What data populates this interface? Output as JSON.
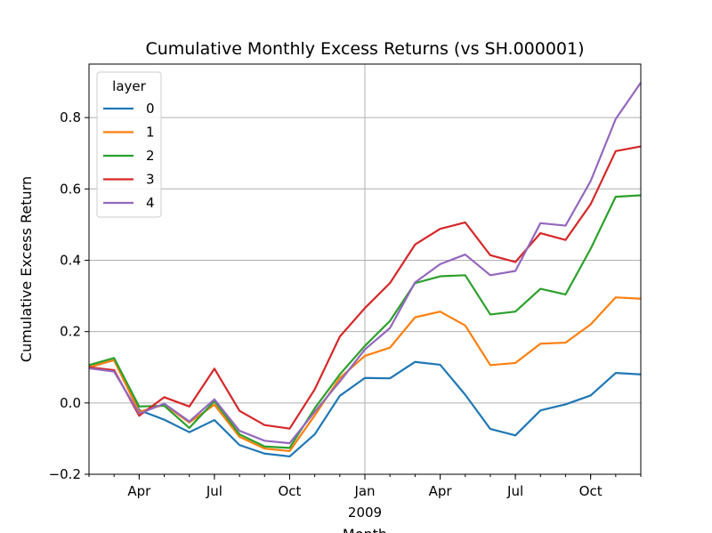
{
  "chart_data": {
    "type": "line",
    "title": "Cumulative Monthly Excess Returns (vs SH.000001)",
    "xlabel": "Month",
    "ylabel": "Cumulative Excess Return",
    "ylim": [
      -0.2,
      0.95
    ],
    "yticks": [
      -0.2,
      0.0,
      0.2,
      0.4,
      0.6,
      0.8
    ],
    "ytick_labels": [
      "−0.2",
      "0.0",
      "0.2",
      "0.4",
      "0.6",
      "0.8"
    ],
    "x": [
      "2008-02",
      "2008-03",
      "2008-04",
      "2008-05",
      "2008-06",
      "2008-07",
      "2008-08",
      "2008-09",
      "2008-10",
      "2008-11",
      "2008-12",
      "2009-01",
      "2009-02",
      "2009-03",
      "2009-04",
      "2009-05",
      "2009-06",
      "2009-07",
      "2009-08",
      "2009-09",
      "2009-10",
      "2009-11",
      "2009-12"
    ],
    "xtick_labels": [
      {
        "month": "2008-04",
        "label": "Apr"
      },
      {
        "month": "2008-07",
        "label": "Jul"
      },
      {
        "month": "2008-10",
        "label": "Oct"
      },
      {
        "month": "2009-01",
        "label": "Jan",
        "sublabel": "2009"
      },
      {
        "month": "2009-04",
        "label": "Apr"
      },
      {
        "month": "2009-07",
        "label": "Jul"
      },
      {
        "month": "2009-10",
        "label": "Oct"
      }
    ],
    "grid": true,
    "legend": {
      "title": "layer",
      "position": "top-left"
    },
    "series": [
      {
        "name": "0",
        "color": "#1f77b4",
        "values": [
          0.1,
          0.12,
          -0.02,
          -0.047,
          -0.082,
          -0.048,
          -0.118,
          -0.142,
          -0.15,
          -0.088,
          0.02,
          0.07,
          0.069,
          0.115,
          0.107,
          0.023,
          -0.073,
          -0.091,
          -0.021,
          -0.004,
          0.021,
          0.084,
          0.08
        ]
      },
      {
        "name": "1",
        "color": "#ff7f0e",
        "values": [
          0.1,
          0.12,
          -0.025,
          -0.005,
          -0.055,
          -0.005,
          -0.095,
          -0.128,
          -0.135,
          -0.035,
          0.07,
          0.132,
          0.155,
          0.24,
          0.256,
          0.217,
          0.106,
          0.112,
          0.166,
          0.169,
          0.22,
          0.296,
          0.292
        ]
      },
      {
        "name": "2",
        "color": "#2ca02c",
        "values": [
          0.106,
          0.126,
          -0.01,
          -0.008,
          -0.07,
          0.005,
          -0.088,
          -0.122,
          -0.126,
          -0.015,
          0.08,
          0.16,
          0.23,
          0.336,
          0.355,
          0.358,
          0.248,
          0.256,
          0.32,
          0.304,
          0.432,
          0.578,
          0.582
        ]
      },
      {
        "name": "3",
        "color": "#d62728",
        "values": [
          0.1,
          0.092,
          -0.036,
          0.016,
          -0.01,
          0.096,
          -0.022,
          -0.062,
          -0.072,
          0.038,
          0.186,
          0.266,
          0.336,
          0.444,
          0.488,
          0.506,
          0.414,
          0.395,
          0.476,
          0.457,
          0.557,
          0.706,
          0.719
        ]
      },
      {
        "name": "4",
        "color": "#9467bd",
        "values": [
          0.097,
          0.088,
          -0.03,
          -0.002,
          -0.052,
          0.01,
          -0.078,
          -0.106,
          -0.113,
          -0.025,
          0.06,
          0.15,
          0.21,
          0.338,
          0.389,
          0.416,
          0.358,
          0.37,
          0.504,
          0.497,
          0.622,
          0.796,
          0.898
        ]
      }
    ]
  }
}
